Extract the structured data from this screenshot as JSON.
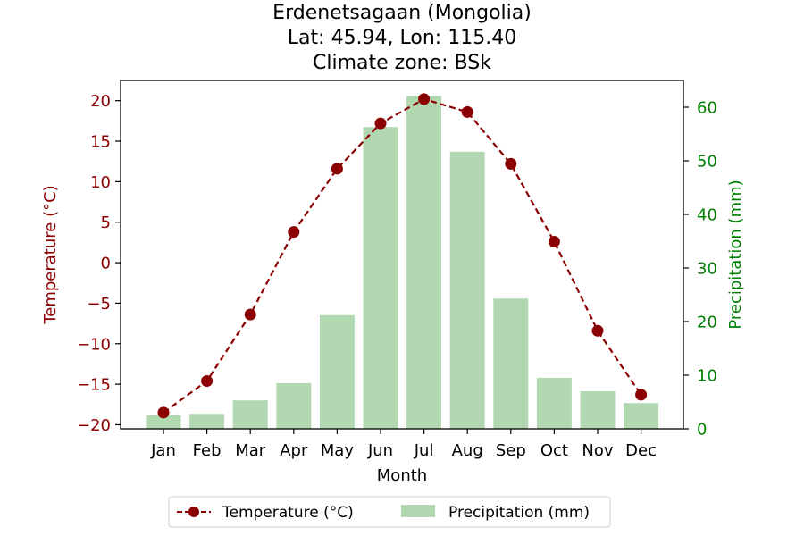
{
  "chart_data": {
    "type": "bar+line",
    "title": [
      "Erdenetsagaan (Mongolia)",
      "Lat: 45.94, Lon: 115.40",
      "Climate zone: BSk"
    ],
    "xlabel": "Month",
    "categories": [
      "Jan",
      "Feb",
      "Mar",
      "Apr",
      "May",
      "Jun",
      "Jul",
      "Aug",
      "Sep",
      "Oct",
      "Nov",
      "Dec"
    ],
    "series": [
      {
        "name": "Temperature (°C)",
        "axis": "left",
        "kind": "line",
        "style": "dashed, circle markers",
        "color": "#8b0000",
        "values": [
          -18.5,
          -14.6,
          -6.4,
          3.8,
          11.6,
          17.2,
          20.2,
          18.6,
          12.2,
          2.6,
          -8.4,
          -16.3
        ]
      },
      {
        "name": "Precipitation (mm)",
        "axis": "right",
        "kind": "bar",
        "color": "#b2d8b2",
        "values": [
          2.5,
          2.8,
          5.3,
          8.5,
          21.2,
          56.3,
          62.1,
          51.7,
          24.3,
          9.5,
          7.0,
          4.8
        ]
      }
    ],
    "y_left": {
      "label": "Temperature (°C)",
      "color": "#8b0000",
      "ylim": [
        -20.5,
        22.5
      ],
      "ticks": [
        -20,
        -15,
        -10,
        -5,
        0,
        5,
        10,
        15,
        20
      ]
    },
    "y_right": {
      "label": "Precipitation (mm)",
      "color": "#008000",
      "ylim": [
        0,
        65
      ],
      "ticks": [
        0,
        10,
        20,
        30,
        40,
        50,
        60
      ]
    },
    "legend": {
      "placement": "bottom-center",
      "entries": [
        "Temperature (°C)",
        "Precipitation (mm)"
      ]
    },
    "grid": false
  }
}
